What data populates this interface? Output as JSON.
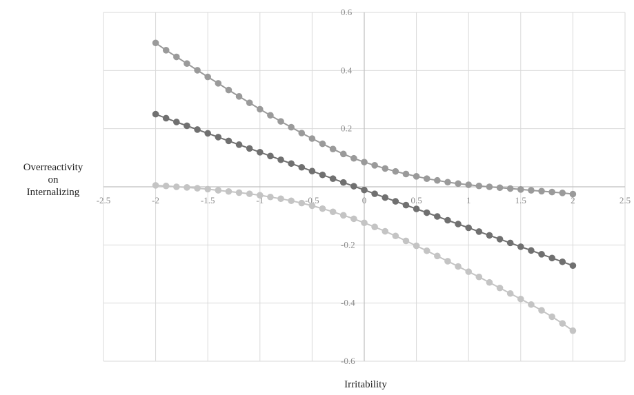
{
  "chart_data": {
    "type": "line",
    "title": "",
    "xlabel": "Irritability",
    "ylabel": [
      "Overreactivity",
      "on",
      "Internalizing"
    ],
    "xlim": [
      -2.5,
      2.5
    ],
    "ylim": [
      -0.6,
      0.6
    ],
    "xticks": [
      "-2.5",
      "-2",
      "-1.5",
      "-1",
      "-0.5",
      "0",
      "0.5",
      "1",
      "1.5",
      "2",
      "2.5"
    ],
    "yticks": [
      "0.6",
      "0.4",
      "0.2",
      "-0.2",
      "-0.4",
      "-0.6"
    ],
    "grid": true,
    "legend": "none",
    "colors": {
      "series1": "#9a9a9a",
      "series2": "#707070",
      "series3": "#c4c4c4",
      "grid": "#d9d9d9",
      "axis": "#bfbfbf"
    },
    "series": [
      {
        "x": [
          -2.0,
          -1.9,
          -1.8,
          -1.7,
          -1.6,
          -1.5,
          -1.4,
          -1.3,
          -1.2,
          -1.1,
          -1.0,
          -0.9,
          -0.8,
          -0.7,
          -0.6,
          -0.5,
          -0.4,
          -0.3,
          -0.2,
          -0.1,
          0.0,
          0.1,
          0.2,
          0.3,
          0.4,
          0.5,
          0.6,
          0.7,
          0.8,
          0.9,
          1.0,
          1.1,
          1.2,
          1.3,
          1.4,
          1.5,
          1.6,
          1.7,
          1.8,
          1.9,
          2.0
        ],
        "values": [
          0.495,
          0.47,
          0.447,
          0.424,
          0.401,
          0.378,
          0.356,
          0.333,
          0.311,
          0.289,
          0.267,
          0.246,
          0.225,
          0.205,
          0.185,
          0.166,
          0.148,
          0.13,
          0.113,
          0.098,
          0.085,
          0.074,
          0.063,
          0.053,
          0.044,
          0.036,
          0.028,
          0.022,
          0.016,
          0.011,
          0.007,
          0.003,
          0.0,
          -0.003,
          -0.006,
          -0.009,
          -0.012,
          -0.015,
          -0.018,
          -0.021,
          -0.025
        ]
      },
      {
        "x": [
          -2.0,
          -1.9,
          -1.8,
          -1.7,
          -1.6,
          -1.5,
          -1.4,
          -1.3,
          -1.2,
          -1.1,
          -1.0,
          -0.9,
          -0.8,
          -0.7,
          -0.6,
          -0.5,
          -0.4,
          -0.3,
          -0.2,
          -0.1,
          0.0,
          0.1,
          0.2,
          0.3,
          0.4,
          0.5,
          0.6,
          0.7,
          0.8,
          0.9,
          1.0,
          1.1,
          1.2,
          1.3,
          1.4,
          1.5,
          1.6,
          1.7,
          1.8,
          1.9,
          2.0
        ],
        "values": [
          0.25,
          0.236,
          0.223,
          0.21,
          0.197,
          0.184,
          0.171,
          0.158,
          0.145,
          0.132,
          0.119,
          0.106,
          0.093,
          0.08,
          0.067,
          0.054,
          0.041,
          0.028,
          0.015,
          0.002,
          -0.011,
          -0.024,
          -0.037,
          -0.05,
          -0.063,
          -0.076,
          -0.089,
          -0.102,
          -0.115,
          -0.128,
          -0.141,
          -0.154,
          -0.167,
          -0.18,
          -0.193,
          -0.206,
          -0.219,
          -0.232,
          -0.245,
          -0.258,
          -0.271
        ]
      },
      {
        "x": [
          -2.0,
          -1.9,
          -1.8,
          -1.7,
          -1.6,
          -1.5,
          -1.4,
          -1.3,
          -1.2,
          -1.1,
          -1.0,
          -0.9,
          -0.8,
          -0.7,
          -0.6,
          -0.5,
          -0.4,
          -0.3,
          -0.2,
          -0.1,
          0.0,
          0.1,
          0.2,
          0.3,
          0.4,
          0.5,
          0.6,
          0.7,
          0.8,
          0.9,
          1.0,
          1.1,
          1.2,
          1.3,
          1.4,
          1.5,
          1.6,
          1.7,
          1.8,
          1.9,
          2.0
        ],
        "values": [
          0.005,
          0.003,
          0.0,
          -0.002,
          -0.005,
          -0.008,
          -0.012,
          -0.016,
          -0.02,
          -0.024,
          -0.029,
          -0.035,
          -0.041,
          -0.048,
          -0.056,
          -0.065,
          -0.075,
          -0.086,
          -0.098,
          -0.11,
          -0.124,
          -0.138,
          -0.153,
          -0.169,
          -0.186,
          -0.203,
          -0.22,
          -0.238,
          -0.256,
          -0.274,
          -0.292,
          -0.31,
          -0.329,
          -0.348,
          -0.367,
          -0.386,
          -0.405,
          -0.425,
          -0.447,
          -0.47,
          -0.495
        ]
      }
    ]
  }
}
